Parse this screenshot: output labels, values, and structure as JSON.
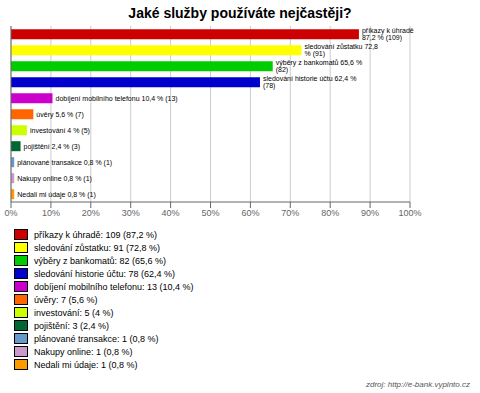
{
  "chart_data": {
    "type": "bar",
    "orientation": "horizontal",
    "title": "Jaké služby používáte nejčastěji?",
    "categories": [
      "příkazy k úhradě 87,2 % (109)",
      "sledování zůstatku 72,8 % (91)",
      "výběry z bankomatů 65,6 % (82)",
      "sledování historie účtu 62,4 % (78)",
      "dobíjení mobilního telefonu 10,4 % (13)",
      "úvěry 5,6 % (7)",
      "investování 4 % (5)",
      "pojištění 2,4 % (3)",
      "plánované transakce 0,8 % (1)",
      "Nakupy online 0,8 % (1)",
      "Nedali mi údaje 0,8 % (1)"
    ],
    "values": [
      87.2,
      72.8,
      65.6,
      62.4,
      10.4,
      5.6,
      4.0,
      2.4,
      0.8,
      0.8,
      0.8
    ],
    "colors": [
      "#cc0000",
      "#ffff00",
      "#00cc00",
      "#0000cc",
      "#cc00cc",
      "#ff6600",
      "#ccff00",
      "#006633",
      "#6699cc",
      "#cc99cc",
      "#ff9900"
    ],
    "xlim": [
      0,
      100
    ],
    "xticks": [
      {
        "value": 0,
        "label": "0%"
      },
      {
        "value": 10,
        "label": "10%"
      },
      {
        "value": 20,
        "label": "20%"
      },
      {
        "value": 30,
        "label": "30%"
      },
      {
        "value": 40,
        "label": "40%"
      },
      {
        "value": 50,
        "label": "50%"
      },
      {
        "value": 60,
        "label": "60%"
      },
      {
        "value": 70,
        "label": "70%"
      },
      {
        "value": 80,
        "label": "80%"
      },
      {
        "value": 90,
        "label": "90%"
      },
      {
        "value": 100,
        "label": "100%"
      }
    ],
    "grid": true,
    "tick_labels": "x",
    "legend": "bottom",
    "legend_labels": [
      "příkazy k úhradě: 109 (87,2 %)",
      "sledování zůstatku: 91 (72,8 %)",
      "výběry z bankomatů: 82 (65,6 %)",
      "sledování historie účtu: 78 (62,4 %)",
      "dobíjení mobilního telefonu: 13 (10,4 %)",
      "úvěry: 7 (5,6 %)",
      "investování: 5 (4 %)",
      "pojištění: 3 (2,4 %)",
      "plánované transakce: 1 (0,8 %)",
      "Nakupy online: 1 (0,8 %)",
      "Nedali mi údaje: 1 (0,8 %)"
    ],
    "annotations": [
      "zdroj: http://e-bank.vyplnto.cz"
    ]
  }
}
